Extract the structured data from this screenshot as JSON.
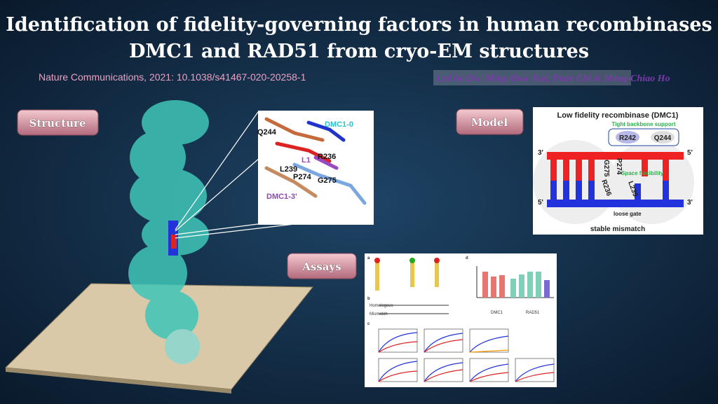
{
  "header": {
    "title_lines": [
      "Identification of fidelity-governing factors in human recombinases",
      "DMC1 and RAD51 from cryo-EM structures"
    ],
    "citation": "Nature Communications, 2021: 10.1038/s41467-020-20258-1",
    "credit": "Led by Drs. Ming-Daw Tsai, Peter Chi & Meng-Chiao Ho"
  },
  "buttons": [
    "Structure",
    "Model",
    "Assays"
  ],
  "structure": {
    "labels": [
      "Q244",
      "DMC1-0",
      "L1",
      "R236",
      "L239",
      "P274",
      "G275",
      "DMC1-3'"
    ]
  },
  "model": {
    "title": "Low fidelity recombinase (DMC1)",
    "support": "Tight backbone support",
    "residues": [
      "R242",
      "Q244",
      "G275",
      "P274",
      "R236",
      "L239"
    ],
    "space": "Space flexibility",
    "ends": [
      "3'",
      "5'",
      "5'",
      "3'"
    ],
    "gate": "loose gate",
    "footer": "stable mismatch"
  },
  "assays": {
    "panels": [
      "a",
      "b",
      "c",
      "d"
    ],
    "labels": [
      "Homologous",
      "Mismatch",
      "DMC1",
      "RAD51"
    ]
  }
}
